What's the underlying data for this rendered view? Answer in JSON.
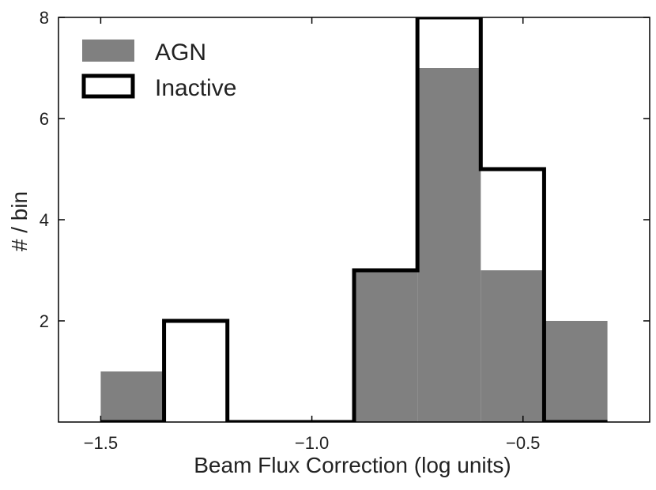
{
  "chart_data": {
    "type": "histogram",
    "xlabel": "Beam Flux Correction (log units)",
    "ylabel": "# / bin",
    "xlim": [
      -1.6,
      -0.2
    ],
    "ylim": [
      0,
      8
    ],
    "xticks": [
      -1.5,
      -1.0,
      -0.5
    ],
    "xtick_labels": [
      "−1.5",
      "−1.0",
      "−0.5"
    ],
    "yticks": [
      2,
      4,
      6,
      8
    ],
    "ytick_labels": [
      "2",
      "4",
      "6",
      "8"
    ],
    "bin_edges": [
      -1.5,
      -1.35,
      -1.2,
      -1.05,
      -0.9,
      -0.75,
      -0.6,
      -0.45,
      -0.3
    ],
    "series": [
      {
        "name": "AGN",
        "style": "filled",
        "color": "#808080",
        "counts": [
          1,
          0,
          0,
          0,
          3,
          7,
          3,
          2
        ]
      },
      {
        "name": "Inactive",
        "style": "step",
        "color": "#000000",
        "counts": [
          0,
          2,
          0,
          0,
          3,
          8,
          5,
          0
        ]
      }
    ],
    "legend": {
      "position": "top-left",
      "entries": [
        "AGN",
        "Inactive"
      ]
    }
  }
}
